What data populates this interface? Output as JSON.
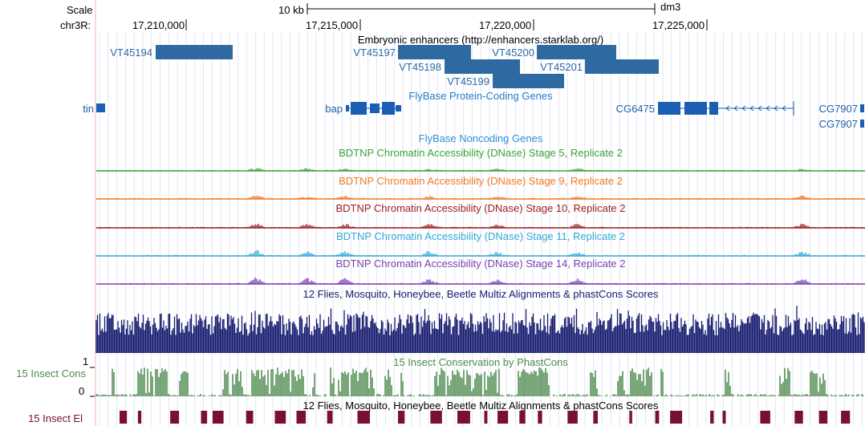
{
  "ruler": {
    "scale_label": "Scale",
    "scale_value": "10 kb",
    "assembly": "dm3",
    "chrom_label": "chr3R:",
    "positions": [
      "17,210,000",
      "17,215,000",
      "17,220,000",
      "17,225,000"
    ]
  },
  "tracks": {
    "enhancers": {
      "title": "Embryonic enhancers (http://enhancers.starklab.org/)",
      "items": [
        "VT45194",
        "VT45197",
        "VT45198",
        "VT45199",
        "VT45200",
        "VT45201"
      ]
    },
    "protein_coding": {
      "title": "FlyBase Protein-Coding Genes",
      "genes": [
        "tin",
        "bap",
        "CG6475",
        "CG7907",
        "CG7907"
      ]
    },
    "noncoding": {
      "title": "FlyBase Noncoding Genes"
    },
    "dnase": [
      {
        "title": "BDTNP Chromatin Accessibility (DNase) Stage 5, Replicate 2",
        "color": "#3aa33a"
      },
      {
        "title": "BDTNP Chromatin Accessibility (DNase) Stage 9, Replicate 2",
        "color": "#f07b22"
      },
      {
        "title": "BDTNP Chromatin Accessibility (DNase) Stage 10, Replicate 2",
        "color": "#9b1c1c"
      },
      {
        "title": "BDTNP Chromatin Accessibility (DNase) Stage 11, Replicate 2",
        "color": "#33a9d6"
      },
      {
        "title": "BDTNP Chromatin Accessibility (DNase) Stage 14, Replicate 2",
        "color": "#7a3fb0"
      }
    ],
    "multiz": {
      "title": "12 Flies, Mosquito, Honeybee, Beetle Multiz Alignments & phastCons Scores",
      "color": "#141a6e"
    },
    "phastcons": {
      "title": "15 Insect Conservation by PhastCons",
      "side_label": "15 Insect Cons",
      "axis_max": "1",
      "axis_min": "0",
      "color": "#4e8a4e"
    },
    "elements": {
      "title": "12 Flies, Mosquito, Honeybee, Beetle Multiz Alignments & phastCons Scores",
      "side_label": "15 Insect El",
      "color": "#7a1030"
    }
  },
  "colors": {
    "enhancer_fill": "#2e6aa1",
    "gene_fill": "#1a5fb4",
    "grid": "#cfd6f2",
    "left_margin_line": "#f2b0b0"
  }
}
